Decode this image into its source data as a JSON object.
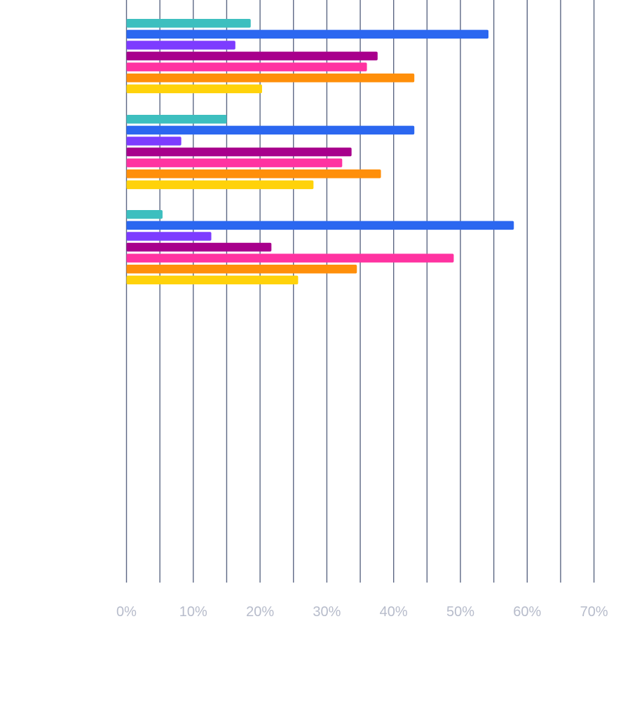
{
  "chart_data": {
    "type": "bar",
    "orientation": "horizontal",
    "xlim": [
      0,
      70
    ],
    "x_ticks": [
      "0%",
      "10%",
      "20%",
      "30%",
      "40%",
      "50%",
      "60%",
      "70%"
    ],
    "grid": "vertical lines every 5%",
    "legend": "none",
    "categories": [
      "",
      "",
      ""
    ],
    "series": [
      {
        "color": "#3dbfbf",
        "values": [
          18.6,
          15.0,
          5.4
        ]
      },
      {
        "color": "#2b67f0",
        "values": [
          54.2,
          43.1,
          58.0
        ]
      },
      {
        "color": "#7d3cff",
        "values": [
          16.3,
          8.2,
          12.7
        ]
      },
      {
        "color": "#a8008c",
        "values": [
          37.6,
          33.7,
          21.7
        ]
      },
      {
        "color": "#ff33a1",
        "values": [
          36.0,
          32.3,
          49.0
        ]
      },
      {
        "color": "#ff8f0a",
        "values": [
          43.1,
          38.1,
          34.5
        ]
      },
      {
        "color": "#ffd20a",
        "values": [
          20.3,
          28.0,
          25.7
        ]
      }
    ]
  }
}
